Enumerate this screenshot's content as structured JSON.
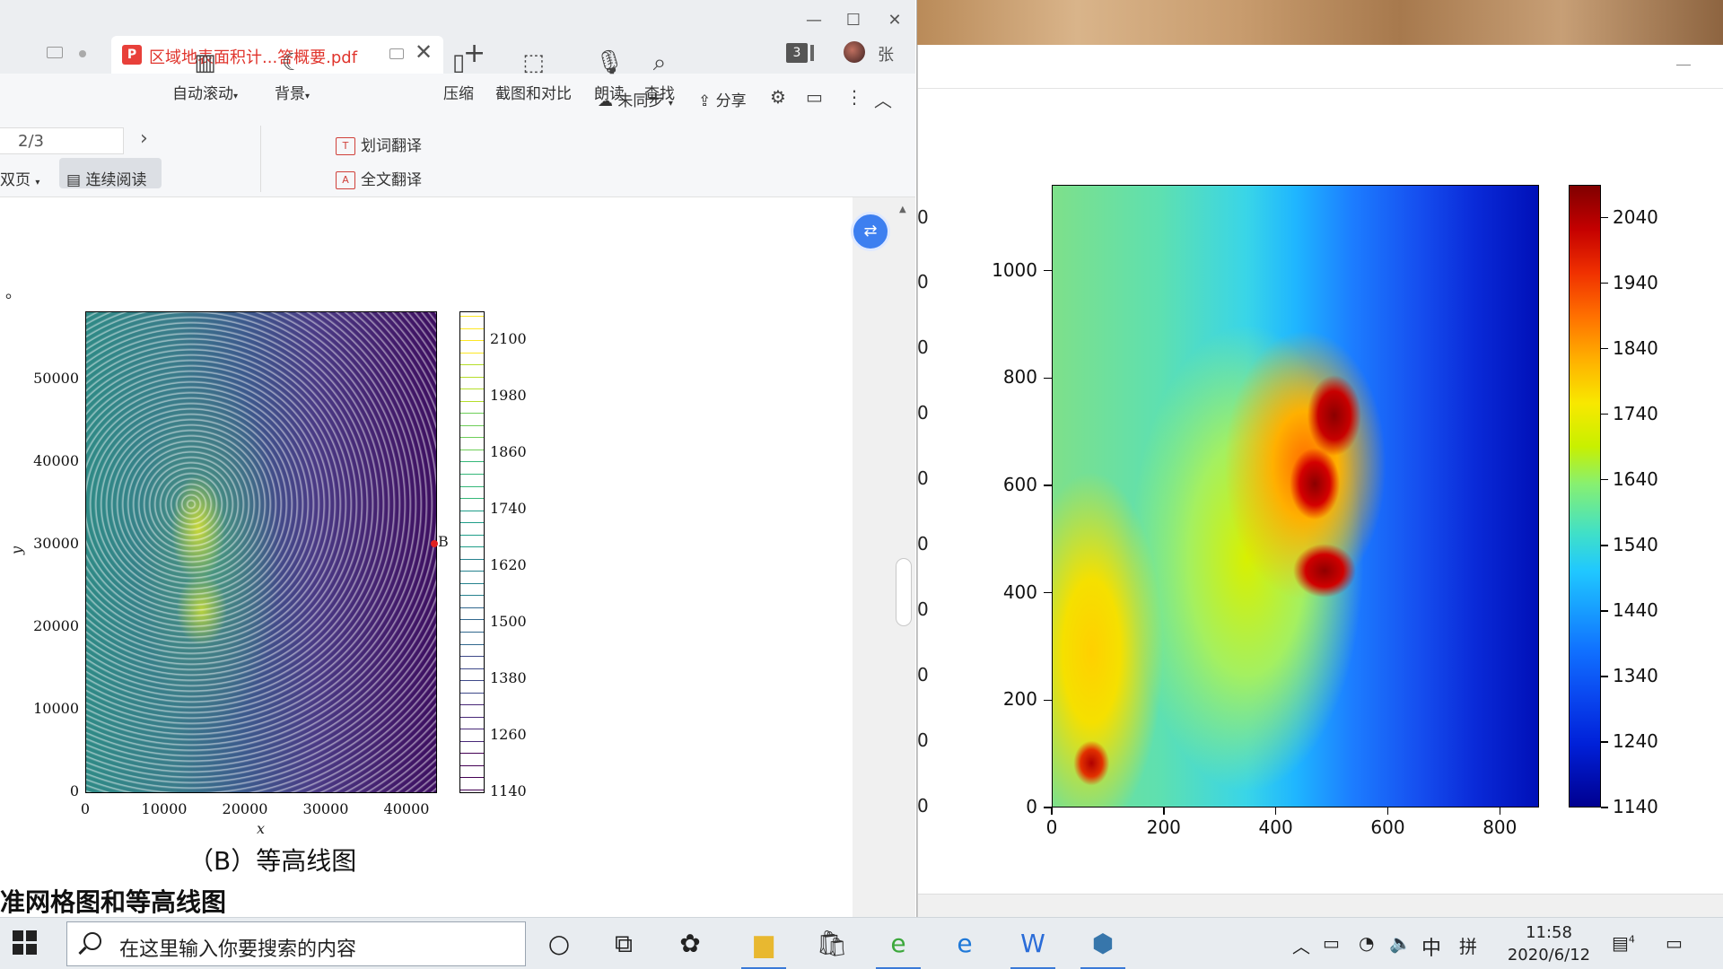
{
  "wps": {
    "tab_active_title": "区域地表面积计...答概要.pdf",
    "tab_count": "3",
    "username": "张",
    "toolbar": {
      "sync": "未同步",
      "share": "分享",
      "page_value": "2/3",
      "double_page": "双页",
      "continuous_read": "连续阅读",
      "auto_scroll": "自动滚动",
      "background": "背景",
      "word_translate": "划词翻译",
      "full_translate": "全文翻译",
      "compress": "压缩",
      "screenshot_compare": "截图和对比",
      "read_aloud": "朗读",
      "find": "查找"
    },
    "document": {
      "mark": "。",
      "caption": "（B）等高线图",
      "heading": "准网格图和等高线图",
      "point_label": "B",
      "contour_xlabel": "x",
      "contour_ylabel": "y",
      "contour_yticks": [
        "50000",
        "40000",
        "30000",
        "20000",
        "10000",
        "0"
      ],
      "contour_xticks": [
        "0",
        "10000",
        "20000",
        "30000",
        "40000"
      ],
      "contour_cbar_ticks": [
        "2100",
        "1980",
        "1860",
        "1740",
        "1620",
        "1500",
        "1380",
        "1260",
        "1140"
      ]
    }
  },
  "figure": {
    "partial_ticks": [
      "0",
      "0",
      "0",
      "0",
      "0",
      "0",
      "0",
      "0",
      "0",
      "0"
    ]
  },
  "chart_data": [
    {
      "type": "heatmap",
      "title": "",
      "xlabel": "",
      "ylabel": "",
      "x_ticks": [
        0,
        200,
        400,
        600,
        800
      ],
      "y_ticks": [
        0,
        200,
        400,
        600,
        800,
        1000
      ],
      "xlim": [
        0,
        870
      ],
      "ylim": [
        0,
        1160
      ],
      "colorbar_ticks": [
        2040,
        1940,
        1840,
        1740,
        1640,
        1540,
        1440,
        1340,
        1240,
        1140
      ],
      "colorbar_range": [
        1140,
        2090
      ],
      "colormap": "jet"
    },
    {
      "type": "heatmap",
      "title": "",
      "xlabel": "x",
      "ylabel": "y",
      "x_ticks": [
        0,
        10000,
        20000,
        30000,
        40000
      ],
      "y_ticks": [
        0,
        10000,
        20000,
        30000,
        40000,
        50000
      ],
      "colorbar_ticks": [
        2100,
        1980,
        1860,
        1740,
        1620,
        1500,
        1380,
        1260,
        1140
      ],
      "colormap": "viridis"
    }
  ],
  "taskbar": {
    "search_placeholder": "在这里输入你要搜索的内容",
    "ime_lang": "中",
    "ime_mode": "拼",
    "time": "11:58",
    "date": "2020/6/12",
    "notification_count": "4"
  }
}
